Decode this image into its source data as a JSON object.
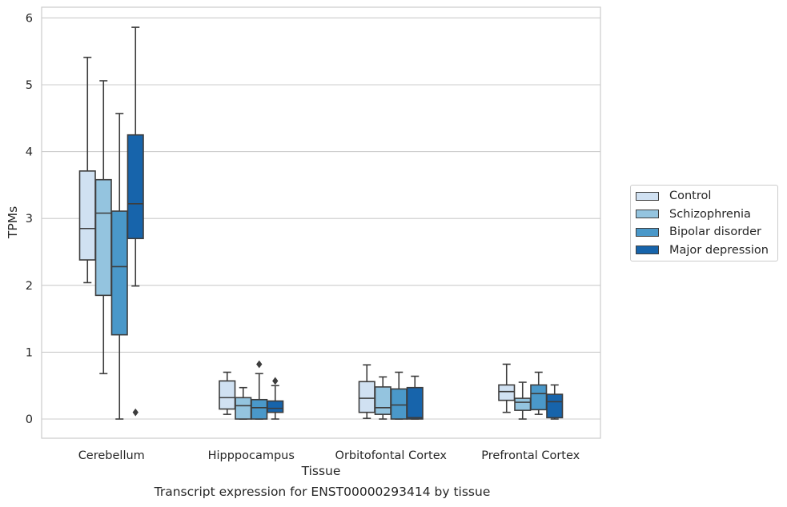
{
  "chart_data": {
    "type": "boxplot",
    "xlabel": "Tissue",
    "ylabel": "TPMs",
    "ylim": [
      -0.28,
      6.15
    ],
    "yticks": [
      0,
      1,
      2,
      3,
      4,
      5,
      6
    ],
    "grid": "horizontal",
    "legend_placement": "right",
    "categories": [
      "Cerebellum",
      "Hipppocampus",
      "Orbitofontal Cortex",
      "Prefrontal Cortex"
    ],
    "series": [
      {
        "name": "Control",
        "color": "#d0e1f2",
        "boxes": [
          {
            "whislo": 2.04,
            "q1": 2.38,
            "med": 2.85,
            "q3": 3.71,
            "whishi": 5.41,
            "fliers": []
          },
          {
            "whislo": 0.07,
            "q1": 0.15,
            "med": 0.32,
            "q3": 0.57,
            "whishi": 0.7,
            "fliers": []
          },
          {
            "whislo": 0.01,
            "q1": 0.1,
            "med": 0.31,
            "q3": 0.56,
            "whishi": 0.81,
            "fliers": []
          },
          {
            "whislo": 0.1,
            "q1": 0.28,
            "med": 0.41,
            "q3": 0.51,
            "whishi": 0.82,
            "fliers": []
          }
        ]
      },
      {
        "name": "Schizophrenia",
        "color": "#94c4df",
        "boxes": [
          {
            "whislo": 0.68,
            "q1": 1.85,
            "med": 3.08,
            "q3": 3.58,
            "whishi": 5.06,
            "fliers": []
          },
          {
            "whislo": 0.0,
            "q1": 0.0,
            "med": 0.2,
            "q3": 0.32,
            "whishi": 0.47,
            "fliers": []
          },
          {
            "whislo": 0.0,
            "q1": 0.07,
            "med": 0.17,
            "q3": 0.48,
            "whishi": 0.63,
            "fliers": []
          },
          {
            "whislo": 0.0,
            "q1": 0.13,
            "med": 0.25,
            "q3": 0.31,
            "whishi": 0.55,
            "fliers": []
          }
        ]
      },
      {
        "name": "Bipolar disorder",
        "color": "#4a98c9",
        "boxes": [
          {
            "whislo": 0.0,
            "q1": 1.26,
            "med": 2.28,
            "q3": 3.11,
            "whishi": 4.57,
            "fliers": []
          },
          {
            "whislo": 0.0,
            "q1": 0.0,
            "med": 0.17,
            "q3": 0.29,
            "whishi": 0.68,
            "fliers": [
              0.82
            ]
          },
          {
            "whislo": 0.0,
            "q1": 0.0,
            "med": 0.21,
            "q3": 0.45,
            "whishi": 0.7,
            "fliers": []
          },
          {
            "whislo": 0.07,
            "q1": 0.14,
            "med": 0.38,
            "q3": 0.51,
            "whishi": 0.7,
            "fliers": []
          }
        ]
      },
      {
        "name": "Major depression",
        "color": "#1764ab",
        "boxes": [
          {
            "whislo": 1.99,
            "q1": 2.7,
            "med": 3.22,
            "q3": 4.25,
            "whishi": 5.86,
            "fliers": [
              0.1
            ]
          },
          {
            "whislo": 0.0,
            "q1": 0.1,
            "med": 0.16,
            "q3": 0.27,
            "whishi": 0.5,
            "fliers": [
              0.57
            ]
          },
          {
            "whislo": 0.0,
            "q1": 0.0,
            "med": 0.02,
            "q3": 0.47,
            "whishi": 0.64,
            "fliers": []
          },
          {
            "whislo": 0.0,
            "q1": 0.02,
            "med": 0.26,
            "q3": 0.37,
            "whishi": 0.51,
            "fliers": []
          }
        ]
      }
    ]
  },
  "caption": "Transcript expression for ENST00000293414 by tissue"
}
